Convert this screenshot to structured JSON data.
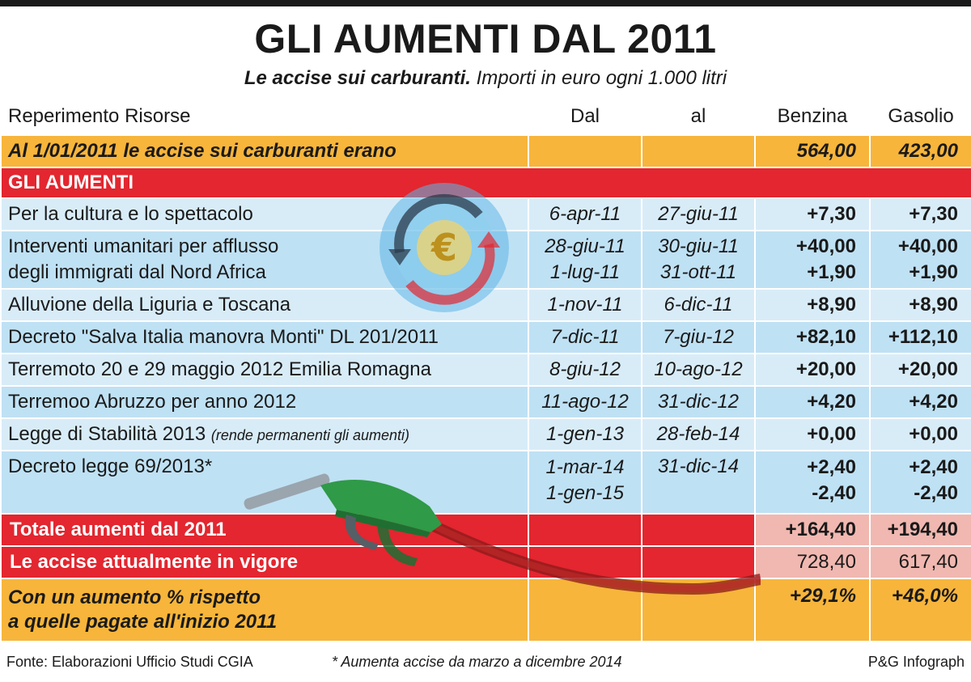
{
  "title": "GLI AUMENTI DAL 2011",
  "subtitle": {
    "bold": "Le accise sui carburanti.",
    "rest": " Importi in euro ogni 1.000 litri"
  },
  "headers": {
    "desc": "Reperimento Risorse",
    "from": "Dal",
    "to": "al",
    "benzina": "Benzina",
    "gasolio": "Gasolio"
  },
  "base_row": {
    "label": "Al 1/01/2011 le accise sui carburanti erano",
    "benzina": "564,00",
    "gasolio": "423,00"
  },
  "section_label": "GLI AUMENTI",
  "rows": [
    {
      "label": "Per la cultura e lo spettacolo",
      "from": "6-apr-11",
      "to": "27-giu-11",
      "benzina": "+7,30",
      "gasolio": "+7,30"
    },
    {
      "label1": "Interventi umanitari per afflusso",
      "label2": "degli immigrati dal Nord Africa",
      "from1": "28-giu-11",
      "from2": "1-lug-11",
      "to1": "30-giu-11",
      "to2": "31-ott-11",
      "benzina1": "+40,00",
      "benzina2": "+1,90",
      "gasolio1": "+40,00",
      "gasolio2": "+1,90"
    },
    {
      "label": "Alluvione della Liguria e Toscana",
      "from": "1-nov-11",
      "to": "6-dic-11",
      "benzina": "+8,90",
      "gasolio": "+8,90"
    },
    {
      "label": "Decreto \"Salva Italia manovra Monti\" DL 201/2011",
      "from": "7-dic-11",
      "to": "7-giu-12",
      "benzina": "+82,10",
      "gasolio": "+112,10"
    },
    {
      "label": "Terremoto 20 e 29 maggio 2012 Emilia Romagna",
      "from": "8-giu-12",
      "to": "10-ago-12",
      "benzina": "+20,00",
      "gasolio": "+20,00"
    },
    {
      "label": "Terremoo Abruzzo per anno 2012",
      "from": "11-ago-12",
      "to": "31-dic-12",
      "benzina": "+4,20",
      "gasolio": "+4,20"
    },
    {
      "label": "Legge di Stabilità 2013",
      "note": "(rende permanenti gli aumenti)",
      "from": "1-gen-13",
      "to": "28-feb-14",
      "benzina": "+0,00",
      "gasolio": "+0,00"
    },
    {
      "label": "Decreto legge 69/2013*",
      "from1": "1-mar-14",
      "from2": "1-gen-15",
      "to1": "31-dic-14",
      "benzina1": "+2,40",
      "benzina2": "-2,40",
      "gasolio1": "+2,40",
      "gasolio2": "-2,40"
    }
  ],
  "total_row": {
    "label": "Totale aumenti dal 2011",
    "benzina": "+164,40",
    "gasolio": "+194,40"
  },
  "current_row": {
    "label": "Le accise attualmente in vigore",
    "benzina": "728,40",
    "gasolio": "617,40"
  },
  "pct_row": {
    "label1": "Con un aumento % rispetto",
    "label2": "a quelle pagate all'inizio 2011",
    "benzina": "+29,1%",
    "gasolio": "+46,0%"
  },
  "footer": {
    "source": "Fonte: Elaborazioni Ufficio Studi CGIA",
    "note": "* Aumenta accise da marzo a dicembre 2014",
    "credit": "P&G Infograph"
  },
  "icons": {
    "euro": "euro-cycle-icon",
    "pump": "fuel-nozzle-icon"
  },
  "colors": {
    "yellow": "#f7b53b",
    "red": "#e3262f",
    "light_blue": "#d8ecf8",
    "blue": "#bfe1f4",
    "pink": "#f0b8b0"
  }
}
